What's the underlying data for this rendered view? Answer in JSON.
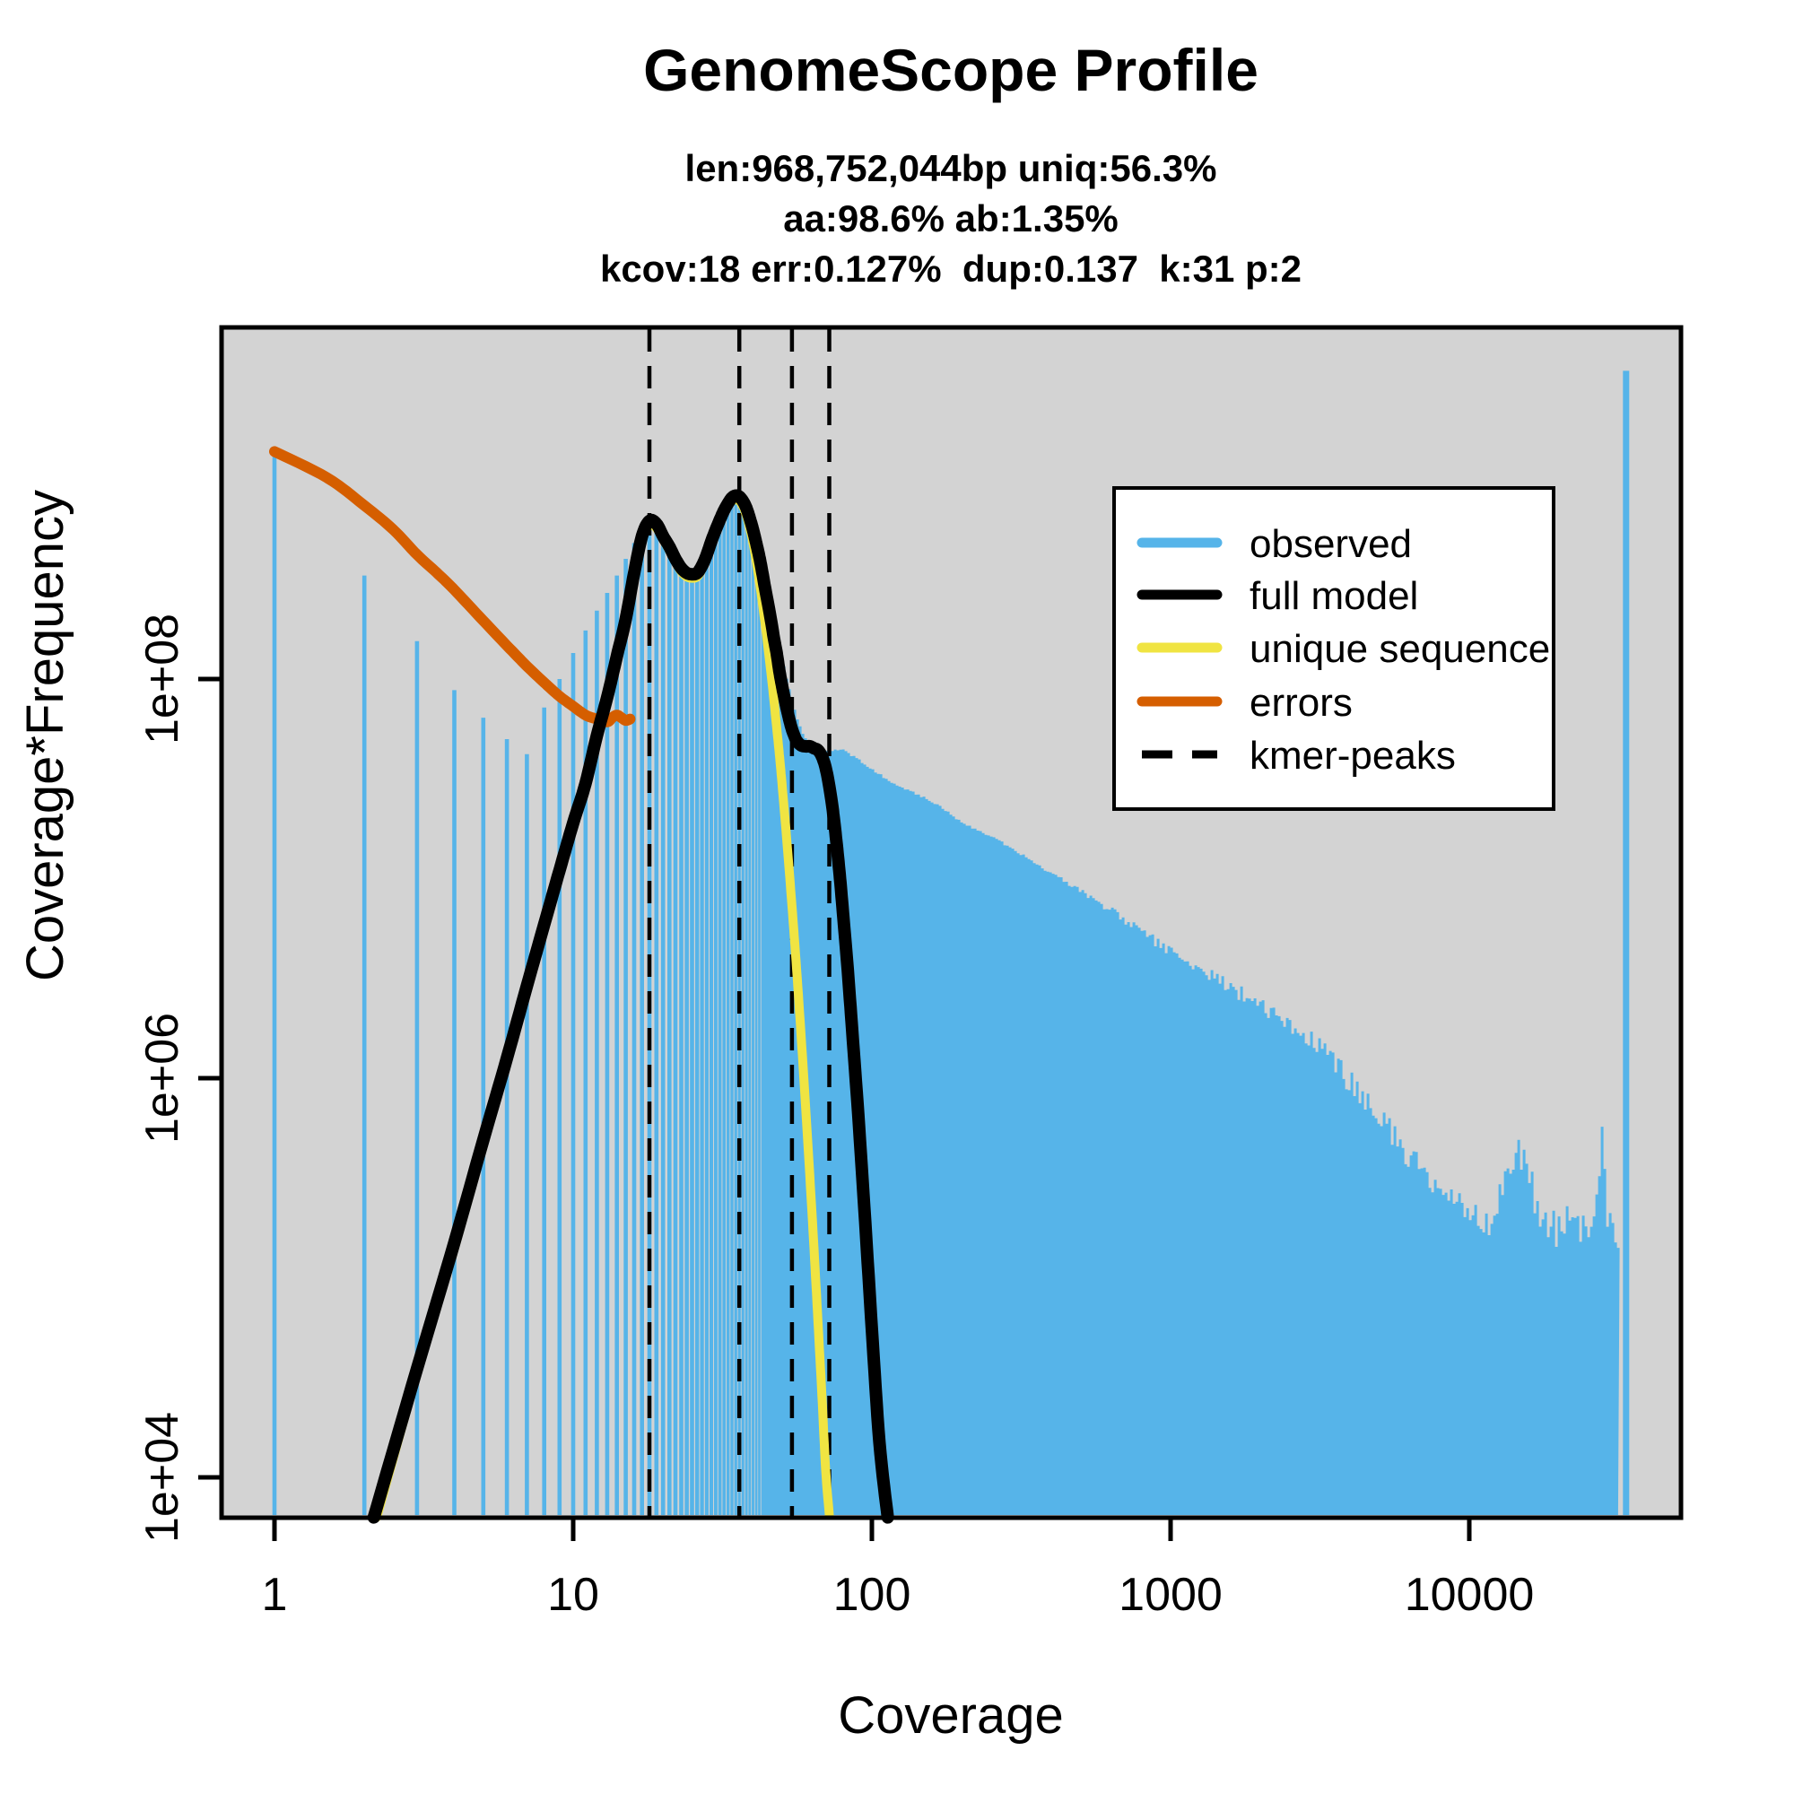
{
  "header": {
    "title": "GenomeScope Profile",
    "subtitle_lines": [
      "len:968,752,044bp uniq:56.3%",
      "aa:98.6% ab:1.35%",
      "kcov:18 err:0.127%  dup:0.137  k:31 p:2"
    ]
  },
  "stats": {
    "len": "968,752,044bp",
    "uniq": "56.3%",
    "aa": "98.6%",
    "ab": "1.35%",
    "kcov": "18",
    "err": "0.127%",
    "dup": "0.137",
    "k": "31",
    "p": "2"
  },
  "axes": {
    "x": {
      "label": "Coverage",
      "tick_labels": [
        "1",
        "10",
        "100",
        "1000",
        "10000"
      ],
      "tick_values": [
        1,
        10,
        100,
        1000,
        10000
      ],
      "scale": "log"
    },
    "y": {
      "label": "Coverage*Frequency",
      "tick_labels": [
        "1e+04",
        "1e+06",
        "1e+08"
      ],
      "tick_values": [
        10000.0,
        1000000.0,
        100000000.0
      ],
      "scale": "log"
    }
  },
  "legend": {
    "items": [
      {
        "label": "observed",
        "color": "#56B4E9",
        "style": "solid"
      },
      {
        "label": "full model",
        "color": "#000000",
        "style": "solid"
      },
      {
        "label": "unique sequence",
        "color": "#F0E442",
        "style": "solid"
      },
      {
        "label": "errors",
        "color": "#D55E00",
        "style": "solid"
      },
      {
        "label": "kmer-peaks",
        "color": "#000000",
        "style": "dashed"
      }
    ]
  },
  "colors": {
    "observed": "#56B4E9",
    "full_model": "#000000",
    "unique_sequence": "#F0E442",
    "errors": "#D55E00",
    "kmer_peaks": "#000000",
    "panel_background": "#D3D3D3",
    "page_background": "#FFFFFF"
  },
  "chart_data": {
    "type": "bar",
    "title": "GenomeScope Profile",
    "xlabel": "Coverage",
    "ylabel": "Coverage*Frequency",
    "xscale": "log",
    "yscale": "log",
    "xlim": [
      0.67,
      50000
    ],
    "ylim": [
      6300,
      5800000000.0
    ],
    "grid": false,
    "legend_position": "upper-right",
    "kmer_peaks": [
      18,
      36,
      54,
      72
    ],
    "max_coverage_spike": {
      "coverage": 33500,
      "value": 3500000000.0
    },
    "series": [
      {
        "name": "observed",
        "type": "bars",
        "color": "#56B4E9",
        "points": [
          [
            1,
            1300000000.0
          ],
          [
            2,
            330000000.0
          ],
          [
            3,
            155000000.0
          ],
          [
            4,
            88000000.0
          ],
          [
            5,
            64000000.0
          ],
          [
            6,
            50000000.0
          ],
          [
            7,
            42000000.0
          ],
          [
            8,
            72000000.0
          ],
          [
            9,
            100000000.0
          ],
          [
            10,
            135000000.0
          ],
          [
            11,
            175000000.0
          ],
          [
            12,
            220000000.0
          ],
          [
            13,
            270000000.0
          ],
          [
            14,
            330000000.0
          ],
          [
            15,
            400000000.0
          ],
          [
            16,
            480000000.0
          ],
          [
            17,
            540000000.0
          ],
          [
            18,
            560000000.0
          ],
          [
            19,
            540000000.0
          ],
          [
            20,
            510000000.0
          ],
          [
            21,
            460000000.0
          ],
          [
            22,
            410000000.0
          ],
          [
            23,
            370000000.0
          ],
          [
            24,
            345000000.0
          ],
          [
            25,
            330000000.0
          ],
          [
            26,
            335000000.0
          ],
          [
            27,
            360000000.0
          ],
          [
            28,
            400000000.0
          ],
          [
            29,
            470000000.0
          ],
          [
            30,
            540000000.0
          ],
          [
            31,
            620000000.0
          ],
          [
            32,
            690000000.0
          ],
          [
            33,
            740000000.0
          ],
          [
            34,
            770000000.0
          ],
          [
            35,
            780000000.0
          ],
          [
            36,
            770000000.0
          ],
          [
            37,
            740000000.0
          ],
          [
            38,
            680000000.0
          ],
          [
            39,
            610000000.0
          ],
          [
            40,
            540000000.0
          ],
          [
            41,
            470000000.0
          ],
          [
            42,
            400000000.0
          ],
          [
            43,
            350000000.0
          ],
          [
            44,
            300000000.0
          ],
          [
            46,
            220000000.0
          ],
          [
            48,
            160000000.0
          ],
          [
            50,
            120000000.0
          ],
          [
            52,
            93000000.0
          ],
          [
            54,
            74000000.0
          ],
          [
            56,
            62000000.0
          ],
          [
            58,
            54000000.0
          ],
          [
            60,
            49000000.0
          ],
          [
            63,
            46000000.0
          ],
          [
            66,
            44000000.0
          ],
          [
            69,
            43000000.0
          ],
          [
            72,
            44000000.0
          ],
          [
            76,
            44000000.0
          ],
          [
            80,
            44000000.0
          ],
          [
            90,
            39000000.0
          ],
          [
            100,
            35000000.0
          ],
          [
            113,
            31000000.0
          ],
          [
            130,
            28000000.0
          ],
          [
            160,
            24000000.0
          ],
          [
            200,
            19000000.0
          ],
          [
            254,
            16000000.0
          ],
          [
            320,
            13000000.0
          ],
          [
            400,
            10500000.0
          ],
          [
            500,
            8600000.0
          ],
          [
            640,
            6800000.0
          ],
          [
            800,
            5300000.0
          ],
          [
            1000,
            4300000.0
          ],
          [
            1300,
            3400000.0
          ],
          [
            1600,
            2800000.0
          ],
          [
            2000,
            2300000.0
          ],
          [
            2600,
            1800000.0
          ],
          [
            3300,
            1300000.0
          ],
          [
            4200,
            860000.0
          ],
          [
            5200,
            580000.0
          ],
          [
            6500,
            380000.0
          ],
          [
            8000,
            270000.0
          ],
          [
            10000,
            210000.0
          ],
          [
            11500,
            190000.0
          ],
          [
            12800,
            260000.0
          ],
          [
            13800,
            400000.0
          ],
          [
            14800,
            410000.0
          ],
          [
            15800,
            300000.0
          ],
          [
            17000,
            210000.0
          ],
          [
            18500,
            180000.0
          ],
          [
            20000,
            170000.0
          ],
          [
            21500,
            200000.0
          ],
          [
            23000,
            165000.0
          ],
          [
            24500,
            180000.0
          ],
          [
            26000,
            170000.0
          ],
          [
            27600,
            580000.0
          ],
          [
            28600,
            220000.0
          ],
          [
            29800,
            170000.0
          ],
          [
            31500,
            150000.0
          ]
        ]
      },
      {
        "name": "full model",
        "type": "line",
        "color": "#000000",
        "points": [
          [
            2.15,
            6300.0
          ],
          [
            3,
            35000.0
          ],
          [
            4,
            150000.0
          ],
          [
            5,
            490000.0
          ],
          [
            6,
            1260000.0
          ],
          [
            7,
            2900000.0
          ],
          [
            8,
            5900000.0
          ],
          [
            9,
            11000000.0
          ],
          [
            10,
            19000000.0
          ],
          [
            11,
            30000000.0
          ],
          [
            12,
            52000000.0
          ],
          [
            13,
            81000000.0
          ],
          [
            14,
            130000000.0
          ],
          [
            15,
            200000000.0
          ],
          [
            16,
            340000000.0
          ],
          [
            17,
            520000000.0
          ],
          [
            18,
            620000000.0
          ],
          [
            19,
            600000000.0
          ],
          [
            20,
            520000000.0
          ],
          [
            21,
            460000000.0
          ],
          [
            22,
            400000000.0
          ],
          [
            23,
            360000000.0
          ],
          [
            24,
            340000000.0
          ],
          [
            25,
            335000000.0
          ],
          [
            26,
            340000000.0
          ],
          [
            27,
            370000000.0
          ],
          [
            28,
            420000000.0
          ],
          [
            29,
            490000000.0
          ],
          [
            30,
            560000000.0
          ],
          [
            31,
            630000000.0
          ],
          [
            32,
            700000000.0
          ],
          [
            33,
            760000000.0
          ],
          [
            34,
            810000000.0
          ],
          [
            35,
            830000000.0
          ],
          [
            36,
            820000000.0
          ],
          [
            37,
            780000000.0
          ],
          [
            38,
            720000000.0
          ],
          [
            39,
            640000000.0
          ],
          [
            40,
            560000000.0
          ],
          [
            41,
            480000000.0
          ],
          [
            42,
            410000000.0
          ],
          [
            43,
            340000000.0
          ],
          [
            44,
            280000000.0
          ],
          [
            45,
            235000000.0
          ],
          [
            46,
            195000000.0
          ],
          [
            47,
            160000000.0
          ],
          [
            48,
            135000000.0
          ],
          [
            49,
            110000000.0
          ],
          [
            50,
            93000000.0
          ],
          [
            51,
            80000000.0
          ],
          [
            52,
            70000000.0
          ],
          [
            53,
            62000000.0
          ],
          [
            54,
            56000000.0
          ],
          [
            55,
            52000000.0
          ],
          [
            56,
            49000000.0
          ],
          [
            58,
            46500000.0
          ],
          [
            60,
            46000000.0
          ],
          [
            62,
            46000000.0
          ],
          [
            64,
            45000000.0
          ],
          [
            66,
            44000000.0
          ],
          [
            68,
            41000000.0
          ],
          [
            70,
            36000000.0
          ],
          [
            72,
            29000000.0
          ],
          [
            74,
            22000000.0
          ],
          [
            76,
            15500000.0
          ],
          [
            78,
            10500000.0
          ],
          [
            80,
            6800000.0
          ],
          [
            83,
            3500000.0
          ],
          [
            86,
            1700000.0
          ],
          [
            90,
            660000.0
          ],
          [
            95,
            190000.0
          ],
          [
            100,
            55000.0
          ],
          [
            106,
            15000.0
          ],
          [
            113,
            6300.0
          ]
        ]
      },
      {
        "name": "unique sequence",
        "type": "line",
        "color": "#F0E442",
        "points": [
          [
            2.2,
            6300.0
          ],
          [
            3,
            33000.0
          ],
          [
            4,
            140000.0
          ],
          [
            5,
            460000.0
          ],
          [
            6,
            1200000.0
          ],
          [
            7,
            2800000.0
          ],
          [
            8,
            5600000.0
          ],
          [
            9,
            10500000.0
          ],
          [
            10,
            18000000.0
          ],
          [
            11,
            29000000.0
          ],
          [
            12,
            50000000.0
          ],
          [
            13,
            78000000.0
          ],
          [
            14,
            125000000.0
          ],
          [
            15,
            195000000.0
          ],
          [
            16,
            330000000.0
          ],
          [
            17,
            500000000.0
          ],
          [
            18,
            590000000.0
          ],
          [
            19,
            570000000.0
          ],
          [
            20,
            500000000.0
          ],
          [
            21,
            440000000.0
          ],
          [
            22,
            385000000.0
          ],
          [
            23,
            345000000.0
          ],
          [
            24,
            325000000.0
          ],
          [
            25,
            320000000.0
          ],
          [
            26,
            325000000.0
          ],
          [
            27,
            355000000.0
          ],
          [
            28,
            400000000.0
          ],
          [
            29,
            470000000.0
          ],
          [
            30,
            540000000.0
          ],
          [
            31,
            610000000.0
          ],
          [
            32,
            680000000.0
          ],
          [
            33,
            740000000.0
          ],
          [
            34,
            780000000.0
          ],
          [
            35,
            790000000.0
          ],
          [
            36,
            780000000.0
          ],
          [
            37,
            730000000.0
          ],
          [
            38,
            660000000.0
          ],
          [
            39,
            570000000.0
          ],
          [
            40,
            480000000.0
          ],
          [
            41,
            390000000.0
          ],
          [
            42,
            310000000.0
          ],
          [
            43,
            240000000.0
          ],
          [
            44,
            185000000.0
          ],
          [
            45,
            140000000.0
          ],
          [
            46,
            105000000.0
          ],
          [
            47,
            78000000.0
          ],
          [
            48,
            57000000.0
          ],
          [
            49,
            42000000.0
          ],
          [
            50,
            30000000.0
          ],
          [
            52,
            15000000.0
          ],
          [
            54,
            7300000.0
          ],
          [
            56,
            3500000.0
          ],
          [
            58,
            1600000.0
          ],
          [
            60,
            720000.0
          ],
          [
            62,
            320000.0
          ],
          [
            64,
            140000.0
          ],
          [
            66,
            60000.0
          ],
          [
            68,
            26000.0
          ],
          [
            70,
            11000.0
          ],
          [
            72,
            6500.0
          ]
        ]
      },
      {
        "name": "errors",
        "type": "line",
        "color": "#D55E00",
        "points": [
          [
            1,
            1380000000.0
          ],
          [
            1.5,
            1020000000.0
          ],
          [
            2,
            740000000.0
          ],
          [
            2.5,
            560000000.0
          ],
          [
            3,
            420000000.0
          ],
          [
            3.5,
            340000000.0
          ],
          [
            4,
            280000000.0
          ],
          [
            5,
            196000000.0
          ],
          [
            6,
            147000000.0
          ],
          [
            7,
            116000000.0
          ],
          [
            8,
            96000000.0
          ],
          [
            9,
            82000000.0
          ],
          [
            10,
            73000000.0
          ],
          [
            11,
            66000000.0
          ],
          [
            12,
            63000000.0
          ],
          [
            13,
            61000000.0
          ],
          [
            13.5,
            64000000.0
          ],
          [
            14,
            66000000.0
          ],
          [
            14.5,
            64000000.0
          ],
          [
            15,
            62000000.0
          ],
          [
            15.5,
            63000000.0
          ]
        ]
      }
    ]
  }
}
